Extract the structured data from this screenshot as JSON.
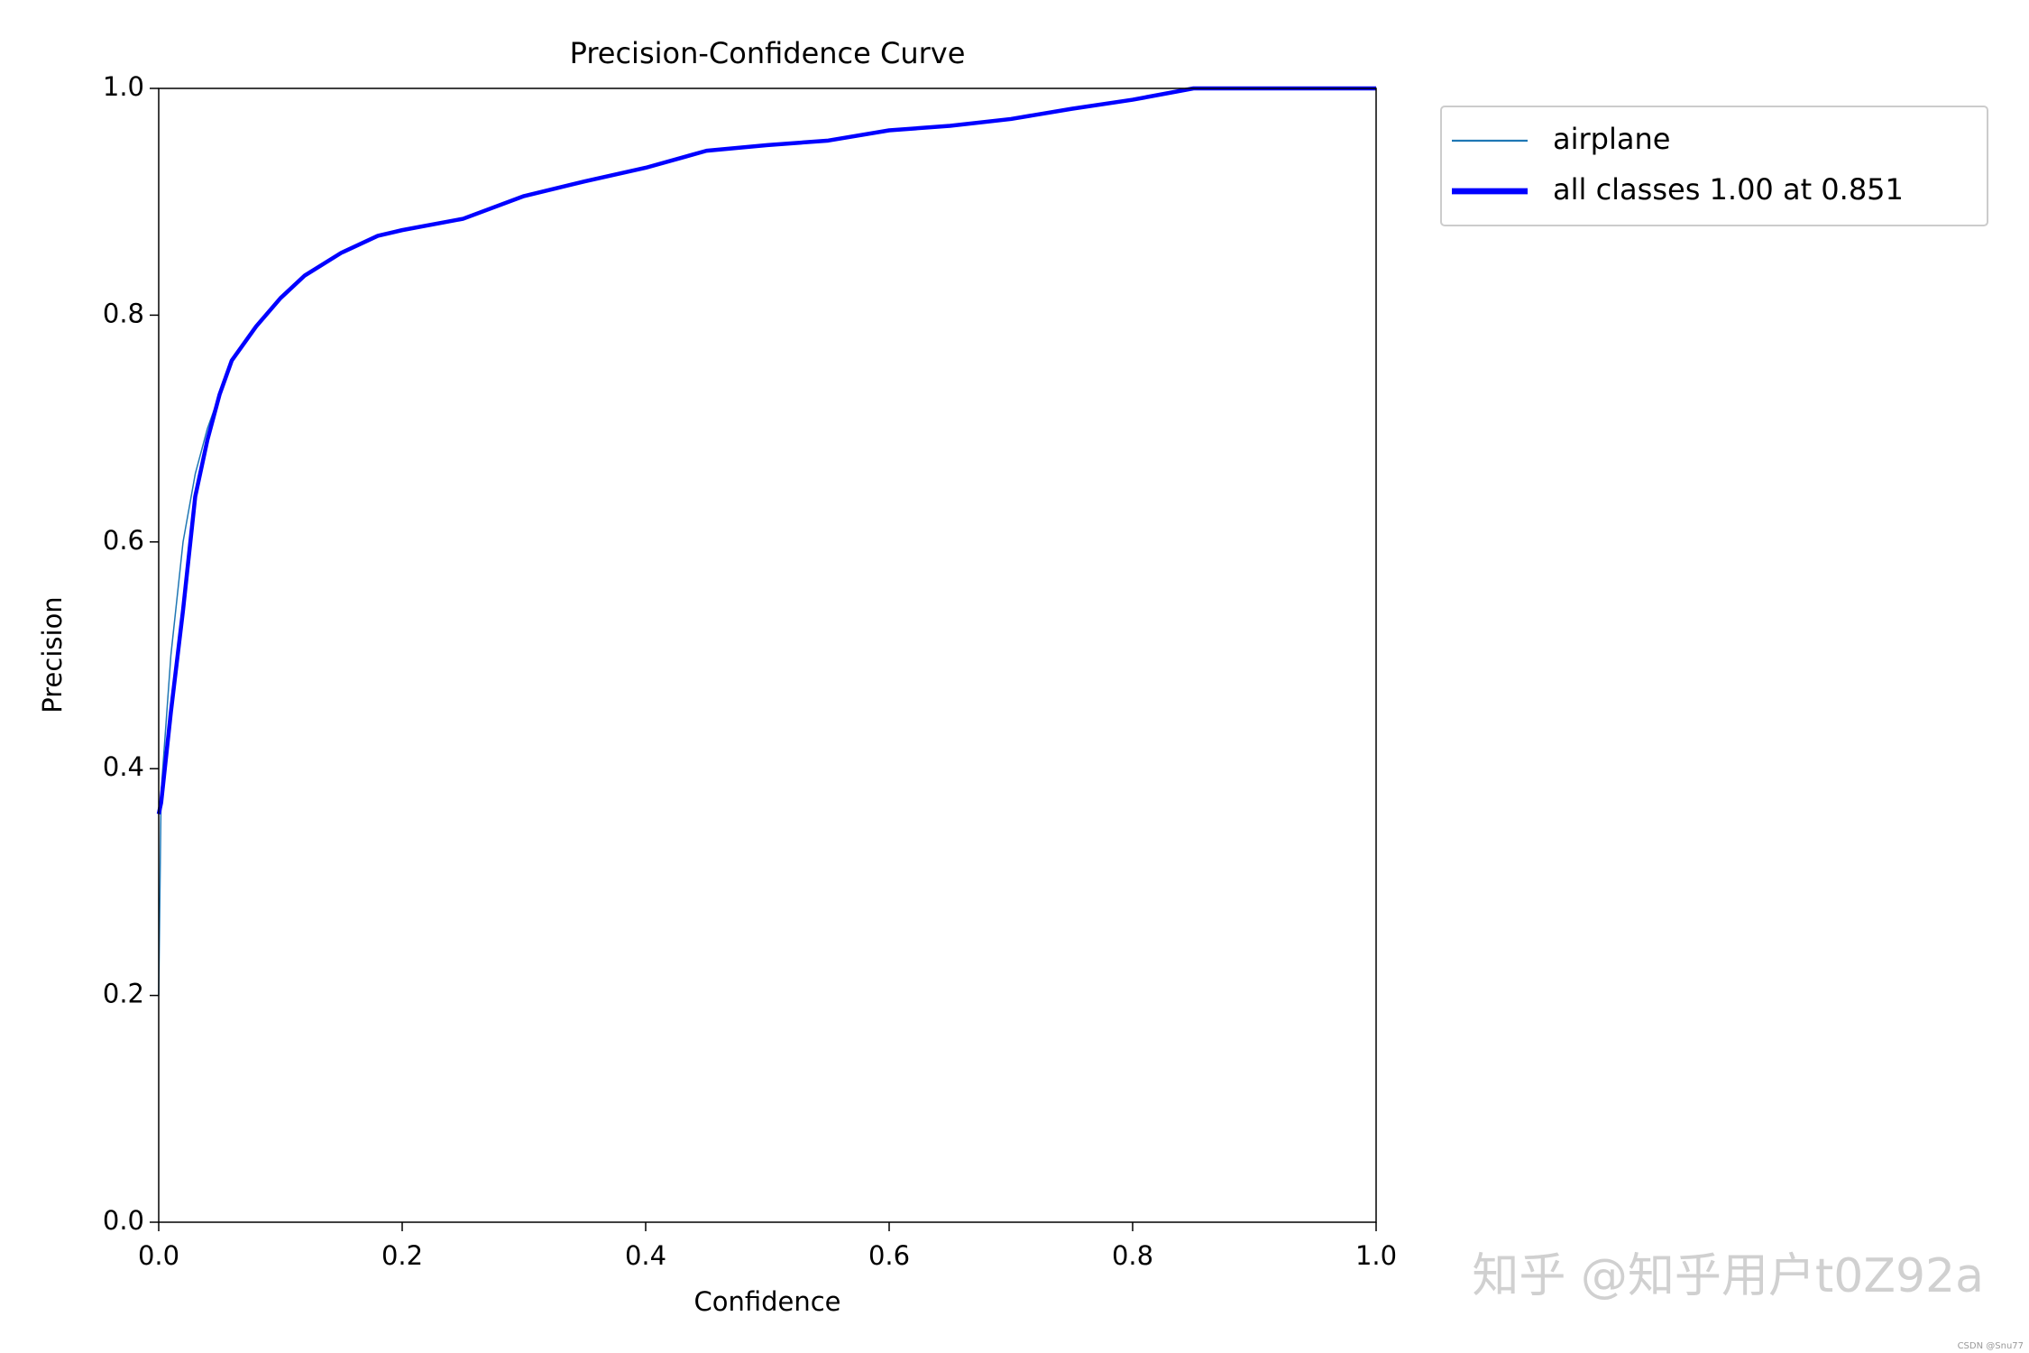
{
  "chart_data": {
    "type": "line",
    "title": "Precision-Confidence Curve",
    "x_label": "Confidence",
    "y_label": "Precision",
    "x": [
      0,
      0.002,
      0.01,
      0.02,
      0.03,
      0.04,
      0.05,
      0.06,
      0.08,
      0.1,
      0.12,
      0.15,
      0.18,
      0.2,
      0.25,
      0.3,
      0.35,
      0.4,
      0.45,
      0.5,
      0.55,
      0.6,
      0.65,
      0.7,
      0.75,
      0.8,
      0.85,
      0.9,
      1.0
    ],
    "series": [
      {
        "name": "airplane",
        "color": "#1f77b4",
        "width": 1.5,
        "values": [
          0.2,
          0.38,
          0.5,
          0.6,
          0.66,
          0.7,
          0.73,
          0.76,
          0.79,
          0.815,
          0.835,
          0.855,
          0.87,
          0.875,
          0.885,
          0.905,
          0.918,
          0.93,
          0.945,
          0.95,
          0.954,
          0.963,
          0.967,
          0.973,
          0.982,
          0.99,
          1.0,
          1.0,
          1.0
        ]
      },
      {
        "name": "all classes 1.00 at 0.851",
        "color": "#0000ff",
        "width": 4.5,
        "values": [
          0.36,
          0.37,
          0.45,
          0.54,
          0.64,
          0.69,
          0.73,
          0.76,
          0.79,
          0.815,
          0.835,
          0.855,
          0.87,
          0.875,
          0.885,
          0.905,
          0.918,
          0.93,
          0.945,
          0.95,
          0.954,
          0.963,
          0.967,
          0.973,
          0.982,
          0.99,
          1.0,
          1.0,
          1.0
        ]
      }
    ],
    "xlim": [
      0,
      1
    ],
    "ylim": [
      0,
      1
    ],
    "xticks": [
      {
        "value": 0,
        "label": "0.0"
      },
      0.2,
      0.4,
      0.6,
      0.8,
      {
        "value": 1,
        "label": "1.0"
      }
    ],
    "yticks": [
      {
        "value": 0,
        "label": "0.0"
      },
      0.2,
      0.4,
      0.6,
      0.8,
      {
        "value": 1,
        "label": "1.0"
      }
    ],
    "legend": "outside-upper-right",
    "watermarks": [
      "知乎 @知乎用户t0Z92a",
      "CSDN @Snu77"
    ]
  }
}
